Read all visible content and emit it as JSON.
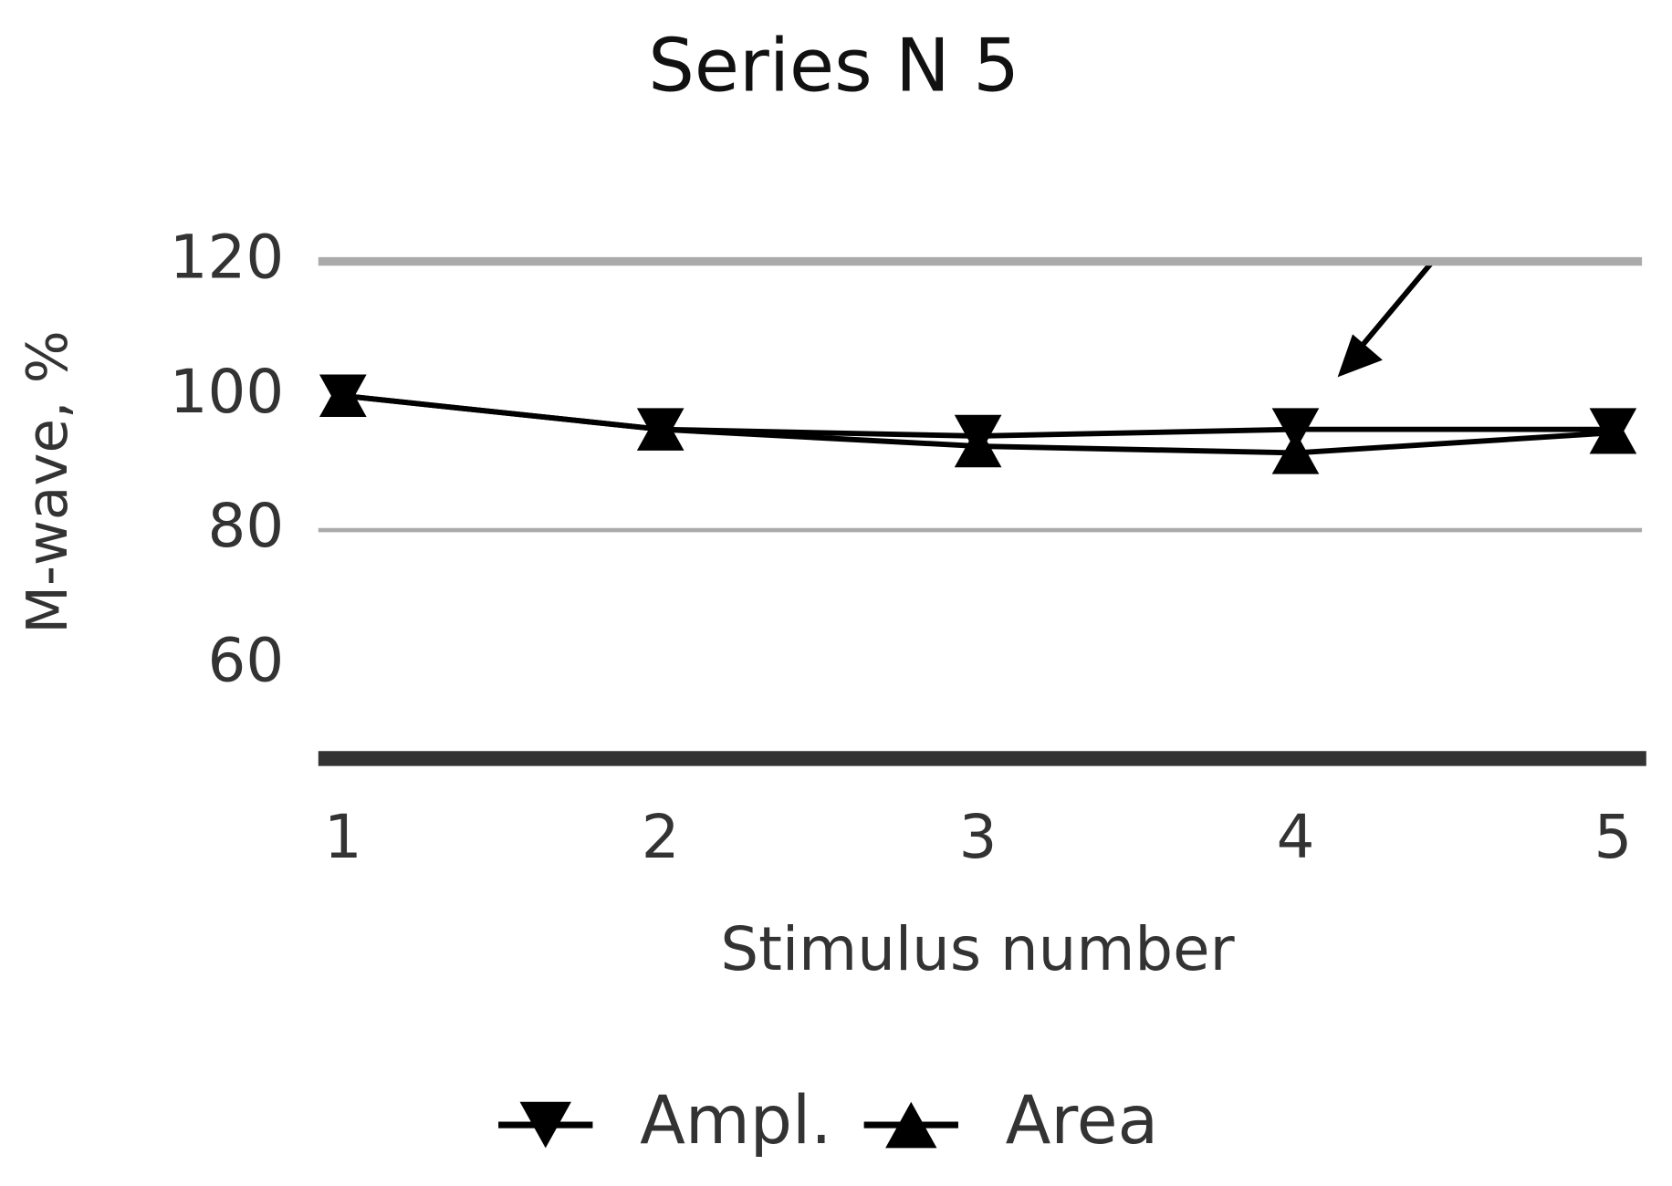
{
  "chart_data": {
    "type": "line",
    "title": "Series N 5",
    "x_label": "Stimulus number",
    "y_label": "M-wave, %",
    "categories": [
      "1",
      "2",
      "3",
      "4",
      "5"
    ],
    "series": [
      {
        "name": "Ampl.",
        "color": "#000000",
        "marker": "triangle-down",
        "values": [
          100,
          95,
          94,
          95,
          95
        ]
      },
      {
        "name": "Area",
        "color": "#000000",
        "marker": "triangle-up",
        "values": [
          100,
          95,
          92.5,
          91.5,
          94.5
        ]
      }
    ],
    "ylim": [
      46,
      120
    ],
    "yticks": [
      60,
      80,
      100,
      120
    ],
    "gridlines": [
      80,
      120
    ],
    "legend": "bottom"
  }
}
